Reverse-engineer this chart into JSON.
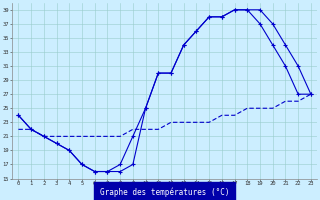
{
  "xlabel": "Graphe des températures (°C)",
  "bg_color": "#cceeff",
  "line_color": "#0000cc",
  "grid_color": "#99cccc",
  "ylim": [
    15,
    40
  ],
  "xlim": [
    -0.5,
    23.5
  ],
  "yticks": [
    15,
    17,
    19,
    21,
    23,
    25,
    27,
    29,
    31,
    33,
    35,
    37,
    39
  ],
  "xticks": [
    0,
    1,
    2,
    3,
    4,
    5,
    6,
    7,
    8,
    9,
    10,
    11,
    12,
    13,
    14,
    15,
    16,
    17,
    18,
    19,
    20,
    21,
    22,
    23
  ],
  "s1_x": [
    0,
    1,
    2,
    3,
    4,
    5,
    6,
    7,
    8,
    9,
    10,
    11,
    12,
    13,
    14,
    15,
    16,
    17,
    18,
    19,
    20,
    21,
    22,
    23
  ],
  "s1_y": [
    24,
    22,
    21,
    20,
    19,
    17,
    16,
    16,
    17,
    21,
    25,
    30,
    30,
    34,
    36,
    38,
    38,
    39,
    39,
    39,
    37,
    34,
    31,
    27
  ],
  "s2_x": [
    0,
    1,
    2,
    3,
    4,
    5,
    6,
    7,
    8,
    9,
    10,
    11,
    12,
    13,
    14,
    15,
    16,
    17,
    18,
    19,
    20,
    21,
    22,
    23
  ],
  "s2_y": [
    24,
    22,
    21,
    20,
    19,
    17,
    16,
    16,
    16,
    17,
    25,
    30,
    30,
    34,
    36,
    38,
    38,
    39,
    39,
    37,
    34,
    31,
    27,
    27
  ],
  "s3_x": [
    0,
    1,
    2,
    3,
    4,
    5,
    6,
    7,
    8,
    9,
    10,
    11,
    12,
    13,
    14,
    15,
    16,
    17,
    18,
    19,
    20,
    21,
    22,
    23
  ],
  "s3_y": [
    22,
    22,
    21,
    21,
    21,
    21,
    21,
    21,
    21,
    22,
    22,
    22,
    23,
    23,
    23,
    23,
    24,
    24,
    25,
    25,
    25,
    26,
    26,
    27
  ]
}
